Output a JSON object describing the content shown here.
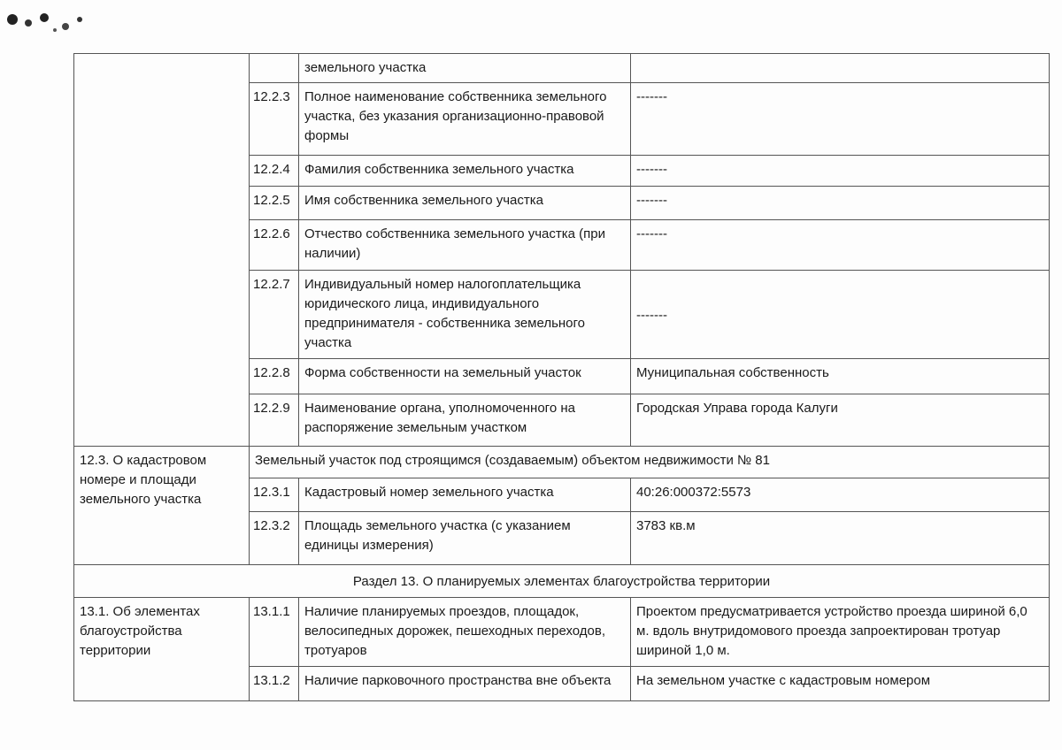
{
  "rows": {
    "r0": {
      "desc": "земельного участка",
      "value": ""
    },
    "r1": {
      "num": "12.2.3",
      "desc": "Полное наименование собственника земельного участка, без указания организационно-правовой формы",
      "value": "-------"
    },
    "r2": {
      "num": "12.2.4",
      "desc": "Фамилия собственника земельного участка",
      "value": "-------"
    },
    "r3": {
      "num": "12.2.5",
      "desc": "Имя собственника земельного участка",
      "value": "-------"
    },
    "r4": {
      "num": "12.2.6",
      "desc": "Отчество собственника земельного участка (при наличии)",
      "value": "-------"
    },
    "r5": {
      "num": "12.2.7",
      "desc": "Индивидуальный номер налогоплательщика юридического лица, индивидуального предпринимателя - собственника земельного участка",
      "value": "-------"
    },
    "r6": {
      "num": "12.2.8",
      "desc": "Форма собственности на земельный участок",
      "value": "Муниципальная собственность"
    },
    "r7": {
      "num": "12.2.9",
      "desc": "Наименование органа, уполномоченного на распоряжение земельным участком",
      "value": "Городская Управа города Калуги"
    }
  },
  "cadastral": {
    "heading": "12.3. О кадастровом номере и площади земельного участка",
    "subtitle": "Земельный участок под строящимся (создаваемым) объектом недвижимости № 81",
    "r1": {
      "num": "12.3.1",
      "desc": "Кадастровый номер земельного участка",
      "value": "40:26:000372:5573"
    },
    "r2": {
      "num": "12.3.2",
      "desc": "Площадь земельного участка (с указанием единицы измерения)",
      "value": "3783 кв.м"
    }
  },
  "section13": {
    "title": "Раздел 13. О планируемых элементах благоустройства территории",
    "heading": "13.1. Об элементах благоустройства территории",
    "r1": {
      "num": "13.1.1",
      "desc": "Наличие планируемых проездов, площадок, велосипедных дорожек, пешеходных переходов, тротуаров",
      "value": "Проектом предусматривается устройство проезда шириной 6,0 м. вдоль внутридомового проезда запроектирован тротуар шириной 1,0 м."
    },
    "r2": {
      "num": "13.1.2",
      "desc": "Наличие парковочного пространства вне объекта",
      "value": "На земельном участке с кадастровым номером"
    }
  }
}
